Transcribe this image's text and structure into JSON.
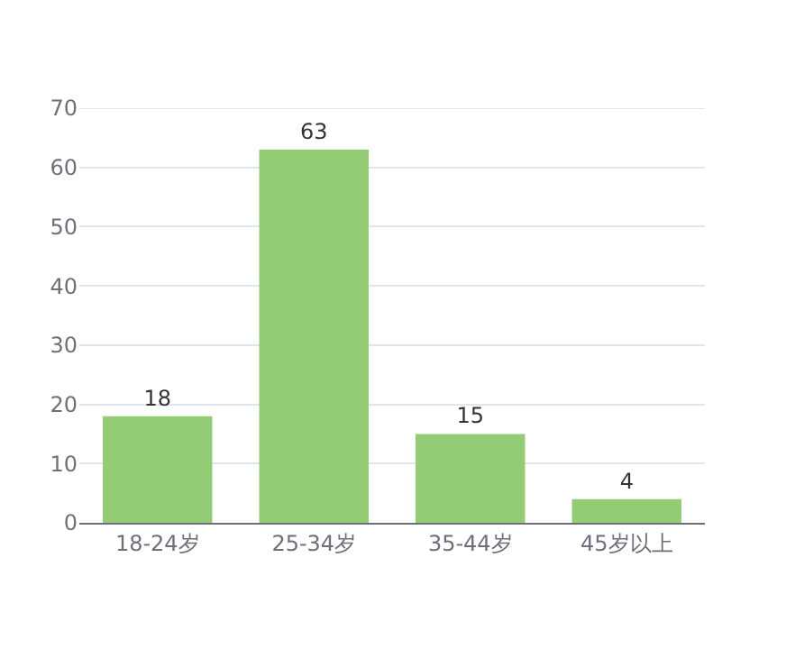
{
  "chart_data": {
    "type": "bar",
    "categories": [
      "18-24岁",
      "25-34岁",
      "35-44岁",
      "45岁以上"
    ],
    "values": [
      18,
      63,
      15,
      4
    ],
    "color": "#93cc74",
    "ylim": [
      0,
      70
    ],
    "yticks": [
      0,
      10,
      20,
      30,
      40,
      50,
      60,
      70
    ],
    "grid": "y",
    "data_labels": true
  }
}
